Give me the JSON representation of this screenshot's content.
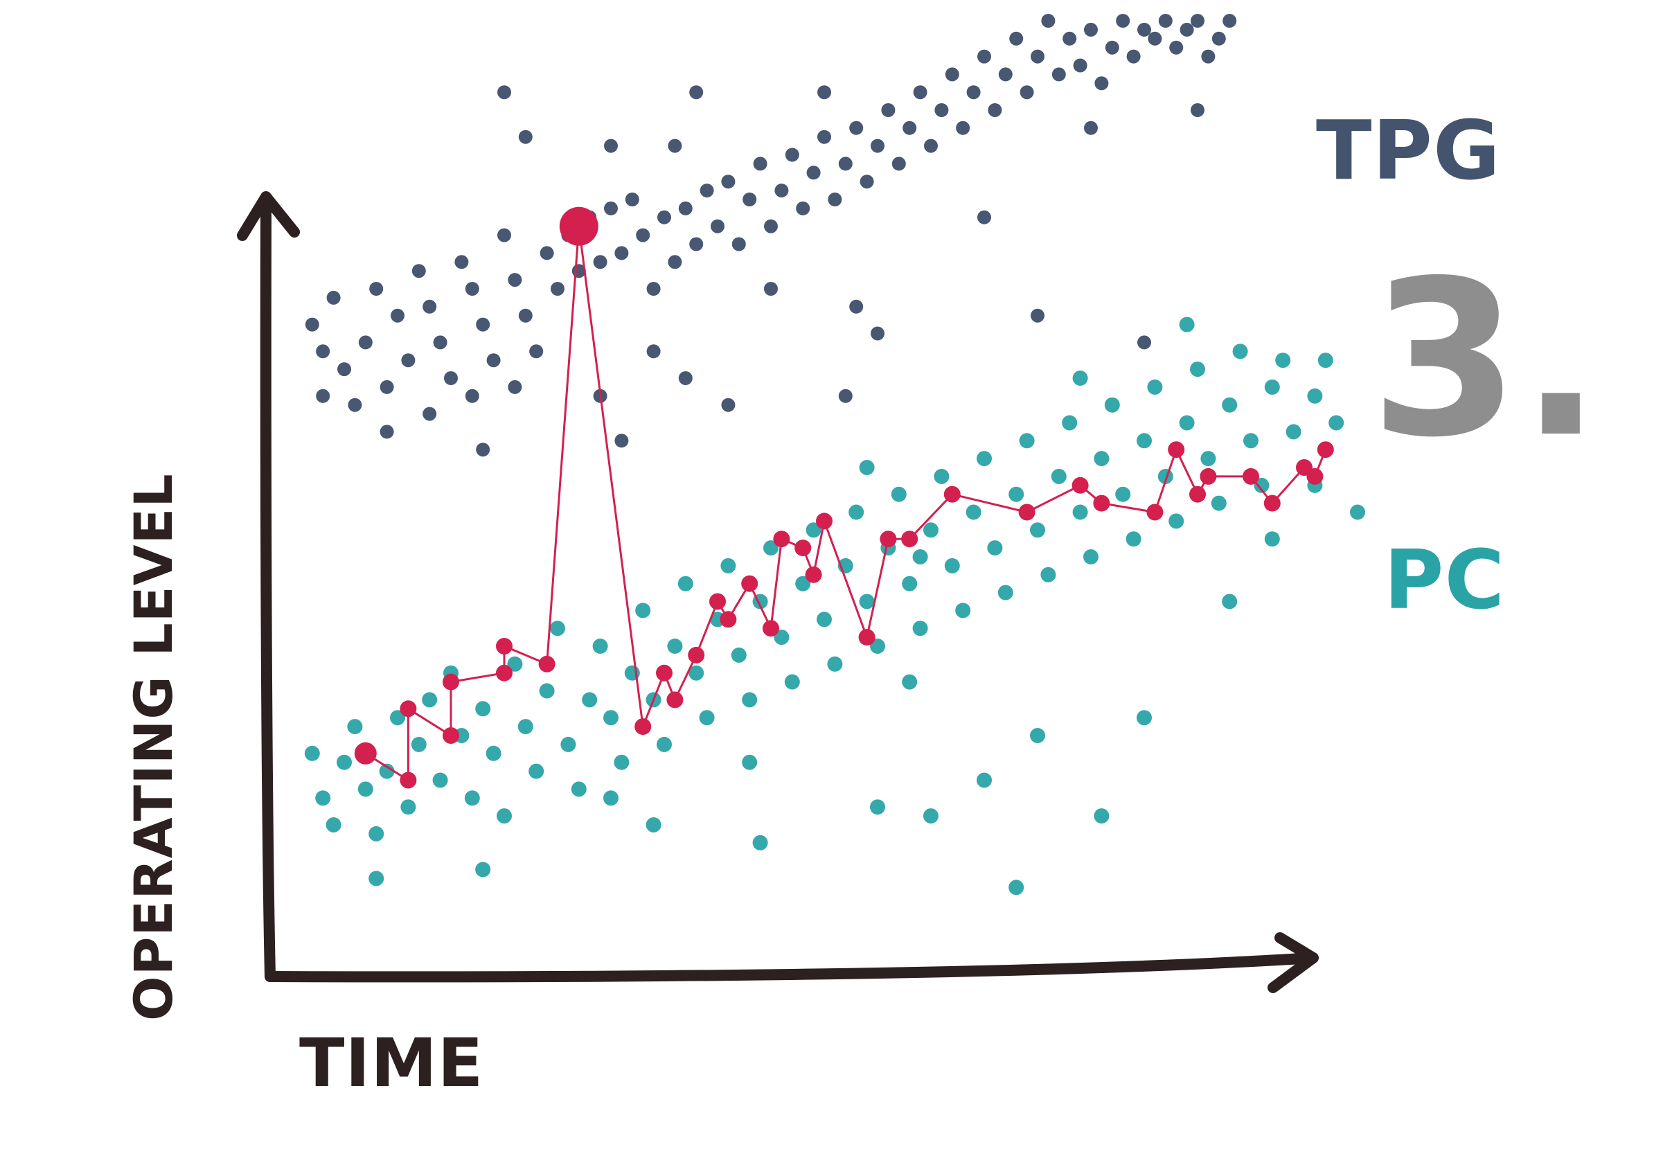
{
  "chart_data": {
    "type": "scatter",
    "title": "",
    "xlabel": "TIME",
    "ylabel": "OPERATING LEVEL",
    "xlim": [
      0,
      100
    ],
    "ylim": [
      0,
      100
    ],
    "grid": false,
    "legend": "right",
    "annotations": [
      {
        "text": "3.",
        "color": "#8e8e8e"
      }
    ],
    "series": [
      {
        "name": "TPG",
        "color": "#44546f",
        "kind": "scatter",
        "points": [
          [
            2,
            66
          ],
          [
            3,
            63
          ],
          [
            4,
            69
          ],
          [
            5,
            61
          ],
          [
            3,
            58
          ],
          [
            6,
            57
          ],
          [
            7,
            64
          ],
          [
            8,
            70
          ],
          [
            10,
            67
          ],
          [
            11,
            62
          ],
          [
            9,
            59
          ],
          [
            12,
            72
          ],
          [
            13,
            68
          ],
          [
            14,
            64
          ],
          [
            15,
            60
          ],
          [
            13,
            56
          ],
          [
            16,
            73
          ],
          [
            17,
            70
          ],
          [
            18,
            66
          ],
          [
            19,
            62
          ],
          [
            17,
            58
          ],
          [
            20,
            76
          ],
          [
            21,
            71
          ],
          [
            22,
            67
          ],
          [
            23,
            63
          ],
          [
            21,
            59
          ],
          [
            24,
            74
          ],
          [
            25,
            70
          ],
          [
            26,
            76
          ],
          [
            27,
            72
          ],
          [
            28,
            78
          ],
          [
            29,
            73
          ],
          [
            30,
            79
          ],
          [
            31,
            74
          ],
          [
            32,
            80
          ],
          [
            33,
            76
          ],
          [
            34,
            70
          ],
          [
            35,
            78
          ],
          [
            36,
            73
          ],
          [
            37,
            79
          ],
          [
            38,
            75
          ],
          [
            39,
            81
          ],
          [
            40,
            77
          ],
          [
            41,
            82
          ],
          [
            42,
            75
          ],
          [
            43,
            80
          ],
          [
            44,
            84
          ],
          [
            45,
            77
          ],
          [
            46,
            81
          ],
          [
            47,
            85
          ],
          [
            48,
            79
          ],
          [
            49,
            83
          ],
          [
            50,
            87
          ],
          [
            51,
            80
          ],
          [
            52,
            84
          ],
          [
            53,
            88
          ],
          [
            54,
            82
          ],
          [
            55,
            86
          ],
          [
            56,
            90
          ],
          [
            57,
            84
          ],
          [
            58,
            88
          ],
          [
            59,
            92
          ],
          [
            60,
            86
          ],
          [
            61,
            90
          ],
          [
            62,
            94
          ],
          [
            63,
            88
          ],
          [
            64,
            92
          ],
          [
            65,
            96
          ],
          [
            66,
            90
          ],
          [
            67,
            94
          ],
          [
            68,
            98
          ],
          [
            69,
            92
          ],
          [
            70,
            96
          ],
          [
            71,
            100
          ],
          [
            72,
            94
          ],
          [
            73,
            98
          ],
          [
            74,
            95
          ],
          [
            75,
            99
          ],
          [
            76,
            93
          ],
          [
            77,
            97
          ],
          [
            78,
            100
          ],
          [
            79,
            96
          ],
          [
            80,
            99
          ],
          [
            81,
            98
          ],
          [
            82,
            100
          ],
          [
            83,
            97
          ],
          [
            84,
            99
          ],
          [
            85,
            100
          ],
          [
            86,
            96
          ],
          [
            87,
            98
          ],
          [
            88,
            100
          ],
          [
            20,
            92
          ],
          [
            22,
            87
          ],
          [
            30,
            86
          ],
          [
            38,
            92
          ],
          [
            36,
            86
          ],
          [
            50,
            92
          ],
          [
            53,
            68
          ],
          [
            31,
            53
          ],
          [
            37,
            60
          ],
          [
            34,
            63
          ],
          [
            70,
            67
          ],
          [
            80,
            64
          ],
          [
            9,
            54
          ],
          [
            18,
            52
          ],
          [
            52,
            58
          ],
          [
            29,
            58
          ],
          [
            41,
            57
          ],
          [
            45,
            70
          ],
          [
            55,
            65
          ],
          [
            65,
            78
          ],
          [
            75,
            88
          ],
          [
            85,
            90
          ]
        ]
      },
      {
        "name": "PC",
        "color": "#2aa3a6",
        "kind": "scatter",
        "points": [
          [
            2,
            18
          ],
          [
            3,
            13
          ],
          [
            4,
            10
          ],
          [
            5,
            17
          ],
          [
            6,
            21
          ],
          [
            7,
            14
          ],
          [
            8,
            9
          ],
          [
            9,
            16
          ],
          [
            10,
            22
          ],
          [
            11,
            12
          ],
          [
            12,
            19
          ],
          [
            13,
            24
          ],
          [
            14,
            15
          ],
          [
            15,
            27
          ],
          [
            16,
            20
          ],
          [
            17,
            13
          ],
          [
            18,
            23
          ],
          [
            19,
            18
          ],
          [
            20,
            11
          ],
          [
            21,
            28
          ],
          [
            22,
            21
          ],
          [
            23,
            16
          ],
          [
            24,
            25
          ],
          [
            25,
            32
          ],
          [
            26,
            19
          ],
          [
            27,
            14
          ],
          [
            28,
            24
          ],
          [
            29,
            30
          ],
          [
            30,
            22
          ],
          [
            31,
            17
          ],
          [
            32,
            27
          ],
          [
            33,
            34
          ],
          [
            34,
            24
          ],
          [
            35,
            19
          ],
          [
            36,
            30
          ],
          [
            37,
            37
          ],
          [
            38,
            27
          ],
          [
            39,
            22
          ],
          [
            40,
            33
          ],
          [
            41,
            39
          ],
          [
            42,
            29
          ],
          [
            43,
            24
          ],
          [
            44,
            35
          ],
          [
            45,
            41
          ],
          [
            46,
            31
          ],
          [
            47,
            26
          ],
          [
            48,
            37
          ],
          [
            49,
            43
          ],
          [
            50,
            33
          ],
          [
            51,
            28
          ],
          [
            52,
            39
          ],
          [
            53,
            45
          ],
          [
            54,
            35
          ],
          [
            55,
            30
          ],
          [
            56,
            41
          ],
          [
            57,
            47
          ],
          [
            58,
            37
          ],
          [
            59,
            32
          ],
          [
            60,
            43
          ],
          [
            61,
            49
          ],
          [
            62,
            39
          ],
          [
            63,
            34
          ],
          [
            64,
            45
          ],
          [
            65,
            51
          ],
          [
            66,
            41
          ],
          [
            67,
            36
          ],
          [
            68,
            47
          ],
          [
            69,
            53
          ],
          [
            70,
            43
          ],
          [
            71,
            38
          ],
          [
            72,
            49
          ],
          [
            73,
            55
          ],
          [
            74,
            45
          ],
          [
            75,
            40
          ],
          [
            76,
            51
          ],
          [
            77,
            57
          ],
          [
            78,
            47
          ],
          [
            79,
            42
          ],
          [
            80,
            53
          ],
          [
            81,
            59
          ],
          [
            82,
            49
          ],
          [
            83,
            44
          ],
          [
            84,
            55
          ],
          [
            85,
            61
          ],
          [
            86,
            51
          ],
          [
            87,
            46
          ],
          [
            88,
            57
          ],
          [
            89,
            63
          ],
          [
            90,
            53
          ],
          [
            91,
            48
          ],
          [
            92,
            59
          ],
          [
            93,
            62
          ],
          [
            94,
            54
          ],
          [
            95,
            50
          ],
          [
            96,
            58
          ],
          [
            97,
            62
          ],
          [
            98,
            55
          ],
          [
            100,
            45
          ],
          [
            84,
            66
          ],
          [
            74,
            60
          ],
          [
            54,
            50
          ],
          [
            59,
            40
          ],
          [
            43,
            17
          ],
          [
            65,
            15
          ],
          [
            34,
            10
          ],
          [
            8,
            4
          ],
          [
            30,
            13
          ],
          [
            55,
            12
          ],
          [
            60,
            11
          ],
          [
            70,
            20
          ],
          [
            80,
            22
          ],
          [
            18,
            5
          ],
          [
            44,
            8
          ],
          [
            68,
            3
          ],
          [
            76,
            11
          ],
          [
            96,
            48
          ],
          [
            88,
            35
          ],
          [
            92,
            42
          ],
          [
            58,
            26
          ]
        ]
      },
      {
        "name": "",
        "color": "#d3204f",
        "kind": "line",
        "points": [
          [
            7,
            18
          ],
          [
            11,
            15
          ],
          [
            11,
            23
          ],
          [
            15,
            20
          ],
          [
            15,
            26
          ],
          [
            20,
            27
          ],
          [
            20,
            30
          ],
          [
            24,
            28
          ],
          [
            27,
            77
          ],
          [
            33,
            21
          ],
          [
            35,
            27
          ],
          [
            36,
            24
          ],
          [
            38,
            29
          ],
          [
            40,
            35
          ],
          [
            41,
            33
          ],
          [
            43,
            37
          ],
          [
            45,
            32
          ],
          [
            46,
            42
          ],
          [
            48,
            41
          ],
          [
            49,
            38
          ],
          [
            50,
            44
          ],
          [
            54,
            31
          ],
          [
            56,
            42
          ],
          [
            58,
            42
          ],
          [
            62,
            47
          ],
          [
            69,
            45
          ],
          [
            74,
            48
          ],
          [
            76,
            46
          ],
          [
            81,
            45
          ],
          [
            83,
            52
          ],
          [
            85,
            47
          ],
          [
            86,
            49
          ],
          [
            90,
            49
          ],
          [
            92,
            46
          ],
          [
            95,
            50
          ],
          [
            96,
            49
          ],
          [
            97,
            52
          ]
        ]
      }
    ]
  }
}
